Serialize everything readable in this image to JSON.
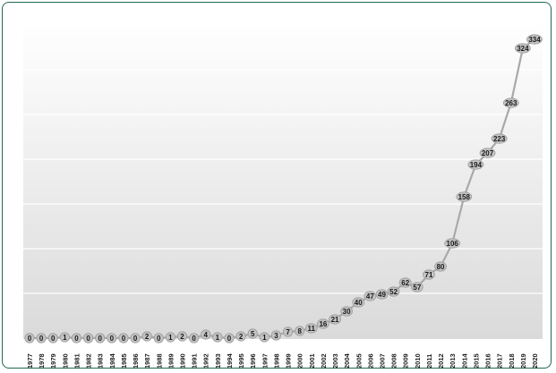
{
  "chart_data": {
    "type": "line",
    "title": "",
    "xlabel": "",
    "ylabel": "",
    "ylim": [
      0,
      350
    ],
    "grid": true,
    "legend": "none",
    "colors": {
      "frame_border": "#1f6b4f",
      "background_top": "#ffffff",
      "background_bottom": "#dadada",
      "line": "#a9a9a9",
      "marker": "#c3c3c3"
    },
    "categories": [
      "1977",
      "1978",
      "1979",
      "1980",
      "1981",
      "1982",
      "1983",
      "1984",
      "1985",
      "1986",
      "1987",
      "1988",
      "1989",
      "1990",
      "1991",
      "1992",
      "1993",
      "1994",
      "1995",
      "1996",
      "1997",
      "1998",
      "1999",
      "2000",
      "2001",
      "2002",
      "2003",
      "2004",
      "2005",
      "2006",
      "2007",
      "2008",
      "2009",
      "2010",
      "2011",
      "2012",
      "2013",
      "2014",
      "2015",
      "2016",
      "2017",
      "2018",
      "2019",
      "2020"
    ],
    "series": [
      {
        "values": [
          0,
          0,
          0,
          1,
          0,
          0,
          0,
          0,
          0,
          0,
          2,
          0,
          1,
          2,
          0,
          4,
          1,
          0,
          2,
          5,
          1,
          3,
          7,
          8,
          11,
          16,
          21,
          30,
          40,
          47,
          49,
          52,
          62,
          57,
          71,
          80,
          106,
          158,
          194,
          207,
          223,
          263,
          324,
          334
        ]
      }
    ]
  }
}
